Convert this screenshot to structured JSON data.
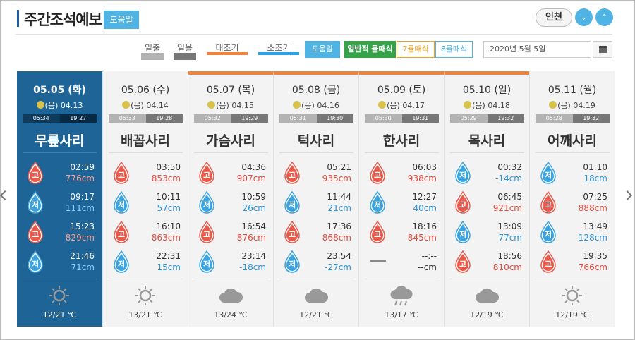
{
  "header": {
    "title": "주간조석예보",
    "help_label": "도움말",
    "region": "인천"
  },
  "legend": {
    "sunrise": "일출",
    "sunset": "일몰",
    "spring_tide": "대조기",
    "neap_tide": "소조기",
    "help": "도움말",
    "mode_normal": "일반적 물때식",
    "mode_7": "7물때식",
    "mode_8": "8물때식",
    "date": "2020년 5월 5일"
  },
  "colors": {
    "accent": "#4fb4e3",
    "spring": "#f0833e",
    "neap": "#2aa4e6",
    "high": "#e24a3c",
    "low": "#2a93d6",
    "selected": "#1e6496",
    "mode_normal": "#36a34a",
    "mode_7": "#f0a11e"
  },
  "days": [
    {
      "date": "05.05 (화)",
      "lunar": "(음) 04.13",
      "sunrise": "05:34",
      "sunset": "19:27",
      "tide_name": "무릎사리",
      "spring": false,
      "selected": true,
      "tides": [
        {
          "type": "high",
          "label": "고",
          "time": "02:59",
          "level": "776cm"
        },
        {
          "type": "low",
          "label": "저",
          "time": "09:17",
          "level": "111cm"
        },
        {
          "type": "high",
          "label": "고",
          "time": "15:23",
          "level": "829cm"
        },
        {
          "type": "low",
          "label": "저",
          "time": "21:46",
          "level": "71cm"
        }
      ],
      "weather": "sunny-icon",
      "temp": "12/21 ℃"
    },
    {
      "date": "05.06 (수)",
      "lunar": "(음) 04.14",
      "sunrise": "05:33",
      "sunset": "19:28",
      "tide_name": "배꼽사리",
      "spring": false,
      "selected": false,
      "tides": [
        {
          "type": "high",
          "label": "고",
          "time": "03:50",
          "level": "853cm"
        },
        {
          "type": "low",
          "label": "저",
          "time": "10:11",
          "level": "57cm"
        },
        {
          "type": "high",
          "label": "고",
          "time": "16:10",
          "level": "863cm"
        },
        {
          "type": "low",
          "label": "저",
          "time": "22:31",
          "level": "15cm"
        }
      ],
      "weather": "sunny-icon",
      "temp": "13/21 ℃"
    },
    {
      "date": "05.07 (목)",
      "lunar": "(음) 04.15",
      "sunrise": "05:32",
      "sunset": "19:29",
      "tide_name": "가슴사리",
      "spring": true,
      "selected": false,
      "tides": [
        {
          "type": "high",
          "label": "고",
          "time": "04:36",
          "level": "907cm"
        },
        {
          "type": "low",
          "label": "저",
          "time": "10:59",
          "level": "26cm"
        },
        {
          "type": "high",
          "label": "고",
          "time": "16:54",
          "level": "876cm"
        },
        {
          "type": "low",
          "label": "저",
          "time": "23:14",
          "level": "-18cm"
        }
      ],
      "weather": "cloudy-icon",
      "temp": "13/24 ℃"
    },
    {
      "date": "05.08 (금)",
      "lunar": "(음) 04.16",
      "sunrise": "05:31",
      "sunset": "19:30",
      "tide_name": "턱사리",
      "spring": true,
      "selected": false,
      "tides": [
        {
          "type": "high",
          "label": "고",
          "time": "05:21",
          "level": "935cm"
        },
        {
          "type": "low",
          "label": "저",
          "time": "11:44",
          "level": "21cm"
        },
        {
          "type": "high",
          "label": "고",
          "time": "17:36",
          "level": "868cm"
        },
        {
          "type": "low",
          "label": "저",
          "time": "23:54",
          "level": "-27cm"
        }
      ],
      "weather": "cloudy-icon",
      "temp": "12/21 ℃"
    },
    {
      "date": "05.09 (토)",
      "lunar": "(음) 04.17",
      "sunrise": "05:30",
      "sunset": "19:31",
      "tide_name": "한사리",
      "spring": true,
      "selected": false,
      "tides": [
        {
          "type": "high",
          "label": "고",
          "time": "06:03",
          "level": "938cm"
        },
        {
          "type": "low",
          "label": "저",
          "time": "12:27",
          "level": "40cm"
        },
        {
          "type": "high",
          "label": "고",
          "time": "18:16",
          "level": "845cm"
        },
        {
          "type": "none",
          "label": "",
          "time": "--:--",
          "level": "--cm"
        }
      ],
      "weather": "rain-icon",
      "temp": "13/17 ℃"
    },
    {
      "date": "05.10 (일)",
      "lunar": "(음) 04.18",
      "sunrise": "05:29",
      "sunset": "19:32",
      "tide_name": "목사리",
      "spring": true,
      "selected": false,
      "tides": [
        {
          "type": "low",
          "label": "저",
          "time": "00:32",
          "level": "-14cm"
        },
        {
          "type": "high",
          "label": "고",
          "time": "06:45",
          "level": "921cm"
        },
        {
          "type": "low",
          "label": "저",
          "time": "13:09",
          "level": "77cm"
        },
        {
          "type": "high",
          "label": "고",
          "time": "18:56",
          "level": "810cm"
        }
      ],
      "weather": "cloudy-icon",
      "temp": "12/19 ℃"
    },
    {
      "date": "05.11 (월)",
      "lunar": "(음) 04.19",
      "sunrise": "05:28",
      "sunset": "19:32",
      "tide_name": "어깨사리",
      "spring": false,
      "selected": false,
      "tides": [
        {
          "type": "low",
          "label": "저",
          "time": "01:10",
          "level": "18cm"
        },
        {
          "type": "high",
          "label": "고",
          "time": "07:25",
          "level": "888cm"
        },
        {
          "type": "low",
          "label": "저",
          "time": "13:49",
          "level": "128cm"
        },
        {
          "type": "high",
          "label": "고",
          "time": "19:35",
          "level": "766cm"
        }
      ],
      "weather": "sunny-icon",
      "temp": "12/19 ℃"
    }
  ]
}
